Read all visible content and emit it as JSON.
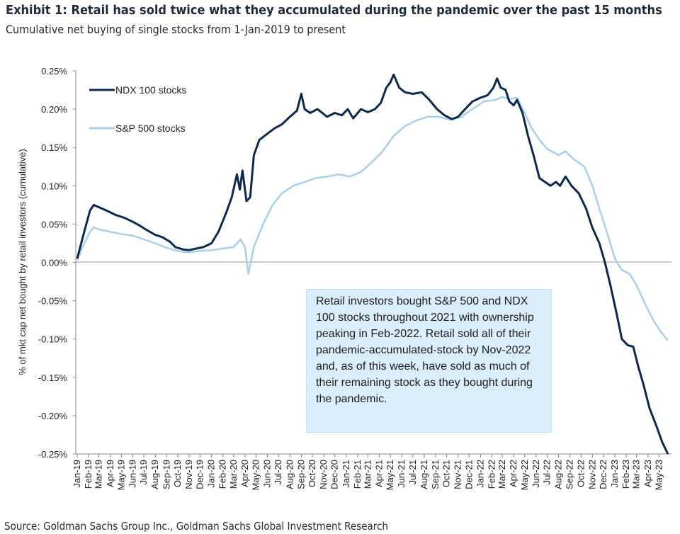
{
  "title": "Exhibit 1: Retail has sold twice what they accumulated during the pandemic over the past 15 months",
  "subtitle": "Cumulative net buying of single stocks from 1-Jan-2019 to present",
  "source": "Source: Goldman Sachs Group Inc., Goldman Sachs Global Investment Research",
  "annotation": "Retail investors bought S&P 500 and NDX 100 stocks throughout 2021 with ownership peaking in Feb-2022. Retail sold all of their pandemic-accumulated-stock by Nov-2022 and, as of this week, have sold as much of their remaining stock as they bought during the pandemic.",
  "chart_data": {
    "type": "line",
    "title": "Exhibit 1: Retail has sold twice what they accumulated during the pandemic over the past 15 months",
    "subtitle": "Cumulative net buying of single stocks from 1-Jan-2019 to present",
    "ylabel": "% of mkt cap net bought by retail investors (cumulative)",
    "xlabel": "",
    "ylim": [
      -0.25,
      0.25
    ],
    "y_ticks": [
      "0.25%",
      "0.20%",
      "0.15%",
      "0.10%",
      "0.05%",
      "0.00%",
      "-0.05%",
      "-0.10%",
      "-0.15%",
      "-0.20%",
      "-0.25%"
    ],
    "grid": false,
    "legend_position": "top-left",
    "x_ticks": [
      "Jan-19",
      "Feb-19",
      "Mar-19",
      "Apr-19",
      "May-19",
      "Jun-19",
      "Jul-19",
      "Aug-19",
      "Sep-19",
      "Oct-19",
      "Nov-19",
      "Dec-19",
      "Jan-20",
      "Feb-20",
      "Mar-20",
      "Apr-20",
      "May-20",
      "Jun-20",
      "Jul-20",
      "Aug-20",
      "Sep-20",
      "Oct-20",
      "Nov-20",
      "Dec-20",
      "Jan-21",
      "Feb-21",
      "Mar-21",
      "Apr-21",
      "May-21",
      "Jun-21",
      "Jul-21",
      "Aug-21",
      "Sep-21",
      "Oct-21",
      "Nov-21",
      "Dec-21",
      "Jan-22",
      "Feb-22",
      "Mar-22",
      "Apr-22",
      "May-22",
      "Jun-22",
      "Jul-22",
      "Aug-22",
      "Sep-22",
      "Oct-22",
      "Nov-22",
      "Dec-22",
      "Jan-23",
      "Feb-23",
      "Mar-23",
      "Apr-23",
      "May-23"
    ],
    "series": [
      {
        "name": "NDX 100 stocks",
        "color": "#0d2a4e",
        "points": [
          [
            "2019-01-01",
            0.005
          ],
          [
            "2019-01-20",
            0.04
          ],
          [
            "2019-02-05",
            0.068
          ],
          [
            "2019-02-15",
            0.075
          ],
          [
            "2019-03-01",
            0.072
          ],
          [
            "2019-03-20",
            0.068
          ],
          [
            "2019-04-15",
            0.062
          ],
          [
            "2019-05-10",
            0.058
          ],
          [
            "2019-06-01",
            0.053
          ],
          [
            "2019-06-20",
            0.048
          ],
          [
            "2019-07-10",
            0.042
          ],
          [
            "2019-08-01",
            0.036
          ],
          [
            "2019-08-20",
            0.033
          ],
          [
            "2019-09-10",
            0.027
          ],
          [
            "2019-09-25",
            0.02
          ],
          [
            "2019-10-15",
            0.017
          ],
          [
            "2019-11-01",
            0.016
          ],
          [
            "2019-11-20",
            0.018
          ],
          [
            "2019-12-10",
            0.02
          ],
          [
            "2020-01-01",
            0.025
          ],
          [
            "2020-01-20",
            0.04
          ],
          [
            "2020-02-10",
            0.065
          ],
          [
            "2020-02-25",
            0.085
          ],
          [
            "2020-03-10",
            0.115
          ],
          [
            "2020-03-18",
            0.095
          ],
          [
            "2020-03-25",
            0.12
          ],
          [
            "2020-04-05",
            0.08
          ],
          [
            "2020-04-15",
            0.085
          ],
          [
            "2020-04-25",
            0.14
          ],
          [
            "2020-05-10",
            0.16
          ],
          [
            "2020-06-01",
            0.168
          ],
          [
            "2020-06-20",
            0.175
          ],
          [
            "2020-07-10",
            0.18
          ],
          [
            "2020-08-01",
            0.19
          ],
          [
            "2020-08-20",
            0.198
          ],
          [
            "2020-09-01",
            0.22
          ],
          [
            "2020-09-10",
            0.2
          ],
          [
            "2020-09-25",
            0.195
          ],
          [
            "2020-10-15",
            0.2
          ],
          [
            "2020-11-10",
            0.19
          ],
          [
            "2020-12-01",
            0.195
          ],
          [
            "2020-12-20",
            0.192
          ],
          [
            "2021-01-05",
            0.2
          ],
          [
            "2021-01-20",
            0.188
          ],
          [
            "2021-02-10",
            0.2
          ],
          [
            "2021-03-01",
            0.196
          ],
          [
            "2021-03-20",
            0.2
          ],
          [
            "2021-04-05",
            0.208
          ],
          [
            "2021-04-20",
            0.228
          ],
          [
            "2021-05-01",
            0.235
          ],
          [
            "2021-05-10",
            0.245
          ],
          [
            "2021-05-25",
            0.228
          ],
          [
            "2021-06-10",
            0.222
          ],
          [
            "2021-07-01",
            0.22
          ],
          [
            "2021-07-25",
            0.222
          ],
          [
            "2021-08-15",
            0.212
          ],
          [
            "2021-09-05",
            0.2
          ],
          [
            "2021-09-25",
            0.192
          ],
          [
            "2021-10-15",
            0.187
          ],
          [
            "2021-11-01",
            0.19
          ],
          [
            "2021-11-20",
            0.2
          ],
          [
            "2021-12-10",
            0.21
          ],
          [
            "2022-01-01",
            0.215
          ],
          [
            "2022-01-20",
            0.218
          ],
          [
            "2022-02-05",
            0.228
          ],
          [
            "2022-02-15",
            0.24
          ],
          [
            "2022-02-25",
            0.228
          ],
          [
            "2022-03-10",
            0.225
          ],
          [
            "2022-03-20",
            0.21
          ],
          [
            "2022-04-01",
            0.205
          ],
          [
            "2022-04-10",
            0.212
          ],
          [
            "2022-04-25",
            0.195
          ],
          [
            "2022-05-10",
            0.165
          ],
          [
            "2022-05-25",
            0.14
          ],
          [
            "2022-06-10",
            0.11
          ],
          [
            "2022-06-25",
            0.105
          ],
          [
            "2022-07-10",
            0.1
          ],
          [
            "2022-07-25",
            0.105
          ],
          [
            "2022-08-05",
            0.1
          ],
          [
            "2022-08-20",
            0.112
          ],
          [
            "2022-09-05",
            0.1
          ],
          [
            "2022-09-25",
            0.09
          ],
          [
            "2022-10-15",
            0.07
          ],
          [
            "2022-11-01",
            0.045
          ],
          [
            "2022-11-20",
            0.025
          ],
          [
            "2022-12-05",
            0.0
          ],
          [
            "2022-12-20",
            -0.03
          ],
          [
            "2023-01-05",
            -0.065
          ],
          [
            "2023-01-20",
            -0.1
          ],
          [
            "2023-02-05",
            -0.108
          ],
          [
            "2023-02-20",
            -0.11
          ],
          [
            "2023-03-05",
            -0.135
          ],
          [
            "2023-03-20",
            -0.16
          ],
          [
            "2023-04-05",
            -0.19
          ],
          [
            "2023-04-25",
            -0.215
          ],
          [
            "2023-05-10",
            -0.235
          ],
          [
            "2023-05-25",
            -0.25
          ]
        ]
      },
      {
        "name": "S&P 500 stocks",
        "color": "#a9cfec",
        "points": [
          [
            "2019-01-01",
            0.003
          ],
          [
            "2019-01-20",
            0.025
          ],
          [
            "2019-02-05",
            0.04
          ],
          [
            "2019-02-15",
            0.046
          ],
          [
            "2019-03-01",
            0.043
          ],
          [
            "2019-04-01",
            0.04
          ],
          [
            "2019-05-01",
            0.037
          ],
          [
            "2019-06-01",
            0.035
          ],
          [
            "2019-07-01",
            0.03
          ],
          [
            "2019-08-01",
            0.025
          ],
          [
            "2019-09-01",
            0.019
          ],
          [
            "2019-10-01",
            0.015
          ],
          [
            "2019-11-01",
            0.013
          ],
          [
            "2019-12-01",
            0.015
          ],
          [
            "2020-01-01",
            0.016
          ],
          [
            "2020-02-01",
            0.018
          ],
          [
            "2020-03-01",
            0.02
          ],
          [
            "2020-03-20",
            0.03
          ],
          [
            "2020-04-01",
            0.02
          ],
          [
            "2020-04-10",
            -0.015
          ],
          [
            "2020-04-25",
            0.02
          ],
          [
            "2020-05-20",
            0.05
          ],
          [
            "2020-06-15",
            0.075
          ],
          [
            "2020-07-10",
            0.09
          ],
          [
            "2020-08-10",
            0.1
          ],
          [
            "2020-09-10",
            0.105
          ],
          [
            "2020-10-10",
            0.11
          ],
          [
            "2020-11-10",
            0.112
          ],
          [
            "2020-12-10",
            0.115
          ],
          [
            "2021-01-10",
            0.112
          ],
          [
            "2021-02-10",
            0.118
          ],
          [
            "2021-03-10",
            0.13
          ],
          [
            "2021-04-10",
            0.145
          ],
          [
            "2021-05-10",
            0.165
          ],
          [
            "2021-06-10",
            0.178
          ],
          [
            "2021-07-10",
            0.185
          ],
          [
            "2021-08-10",
            0.19
          ],
          [
            "2021-09-10",
            0.19
          ],
          [
            "2021-10-10",
            0.186
          ],
          [
            "2021-11-10",
            0.19
          ],
          [
            "2021-12-10",
            0.2
          ],
          [
            "2022-01-10",
            0.21
          ],
          [
            "2022-02-10",
            0.212
          ],
          [
            "2022-03-01",
            0.216
          ],
          [
            "2022-03-20",
            0.213
          ],
          [
            "2022-04-10",
            0.215
          ],
          [
            "2022-05-01",
            0.195
          ],
          [
            "2022-05-20",
            0.175
          ],
          [
            "2022-06-10",
            0.16
          ],
          [
            "2022-07-01",
            0.148
          ],
          [
            "2022-08-01",
            0.14
          ],
          [
            "2022-08-20",
            0.145
          ],
          [
            "2022-09-10",
            0.135
          ],
          [
            "2022-10-10",
            0.125
          ],
          [
            "2022-11-01",
            0.1
          ],
          [
            "2022-11-20",
            0.07
          ],
          [
            "2022-12-10",
            0.04
          ],
          [
            "2023-01-01",
            0.005
          ],
          [
            "2023-01-20",
            -0.01
          ],
          [
            "2023-02-10",
            -0.015
          ],
          [
            "2023-03-01",
            -0.03
          ],
          [
            "2023-03-25",
            -0.055
          ],
          [
            "2023-04-15",
            -0.075
          ],
          [
            "2023-05-05",
            -0.09
          ],
          [
            "2023-05-25",
            -0.102
          ]
        ]
      }
    ]
  }
}
